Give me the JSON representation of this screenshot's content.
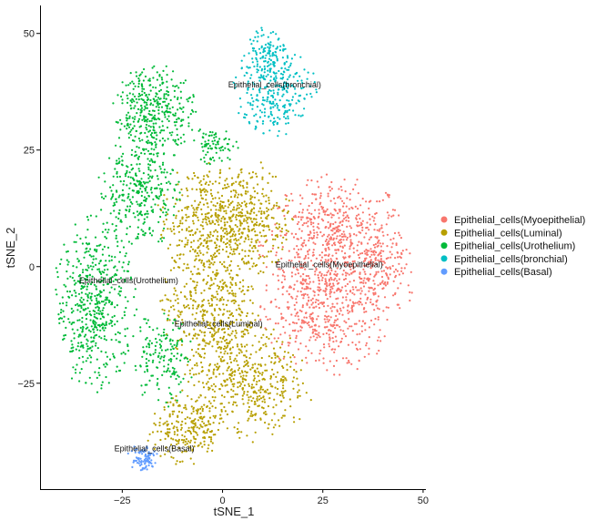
{
  "chart_data": {
    "type": "scatter",
    "title": "",
    "xlabel": "tSNE_1",
    "ylabel": "tSNE_2",
    "xlim": [
      -45.5,
      50.7
    ],
    "ylim": [
      -47.7,
      56
    ],
    "xticks": [
      -25,
      0,
      25,
      50
    ],
    "yticks": [
      -25,
      0,
      25,
      50
    ],
    "xtick_labels": [
      "−25",
      "0",
      "25",
      "50"
    ],
    "ytick_labels": [
      "−25",
      "0",
      "25",
      "50"
    ],
    "grid": false,
    "legend_position": "right",
    "clusters": [
      {
        "name": "Epithelial_cells(Myoepithelial)",
        "color": "#F8766D",
        "label_at": [
          26.6,
          0.4
        ],
        "components": [
          [
            28,
            5,
            9,
            7,
            650
          ],
          [
            25,
            -11,
            8,
            6,
            420
          ],
          [
            40,
            -2,
            4,
            5,
            120
          ]
        ]
      },
      {
        "name": "Epithelial_cells(Luminal)",
        "color": "#B79F00",
        "label_at": [
          -1,
          -12.3
        ],
        "components": [
          [
            -4,
            10,
            6,
            6,
            380
          ],
          [
            7,
            10,
            5,
            6,
            300
          ],
          [
            -3,
            -8,
            6,
            7,
            420
          ],
          [
            6,
            -25,
            8,
            6,
            480
          ],
          [
            -9,
            -35,
            5,
            4,
            220
          ]
        ]
      },
      {
        "name": "Epithelial_cells(Urothelium)",
        "color": "#00BA38",
        "label_at": [
          -23.4,
          -3
        ],
        "components": [
          [
            -17,
            33,
            5,
            5,
            380
          ],
          [
            -21,
            16,
            5,
            6,
            320
          ],
          [
            -32,
            -8,
            5,
            9,
            520
          ],
          [
            -15,
            -20,
            4,
            5,
            160
          ],
          [
            -2,
            26,
            3,
            2,
            80
          ]
        ]
      },
      {
        "name": "Epithelial_cells(bronchial)",
        "color": "#00BFC4",
        "label_at": [
          13,
          39
        ],
        "components": [
          [
            13,
            38,
            5,
            5,
            300
          ],
          [
            11,
            46,
            2.5,
            3,
            90
          ]
        ]
      },
      {
        "name": "Epithelial_cells(Basal)",
        "color": "#619CFF",
        "label_at": [
          -17,
          -39
        ],
        "components": [
          [
            -20,
            -41,
            1.8,
            1.5,
            90
          ]
        ]
      }
    ],
    "components_format": [
      "center_x",
      "center_y",
      "spread_x",
      "spread_y",
      "n_points"
    ]
  }
}
